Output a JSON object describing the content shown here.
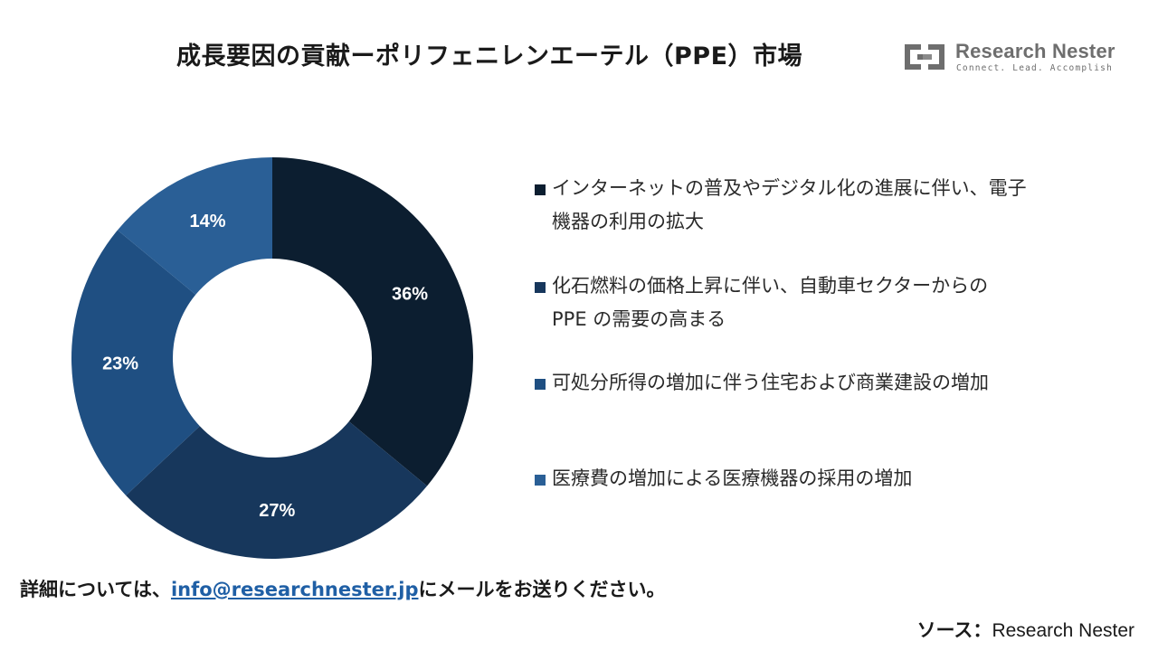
{
  "header": {
    "title": "成長要因の貢献ーポリフェニレンエーテル（PPE）市場"
  },
  "logo": {
    "name": "Research Nester",
    "tagline": "Connect. Lead. Accomplish"
  },
  "chart_data": {
    "type": "pie",
    "donut": true,
    "title": "",
    "categories": [
      "インターネットの普及やデジタル化の進展に伴い、電子機器の利用の拡大",
      "化石燃料の価格上昇に伴い、自動車セクターからのPPEの需要の高まる",
      "可処分所得の増加に伴う住宅および商業建設の増加",
      "医療費の増加による医療機器の採用の増加"
    ],
    "values": [
      36,
      27,
      23,
      14
    ],
    "value_labels": [
      "36%",
      "27%",
      "23%",
      "14%"
    ],
    "colors": [
      "#0c1e30",
      "#17375c",
      "#1f4f82",
      "#2a5f96"
    ],
    "legend_position": "right"
  },
  "legend": {
    "items": [
      {
        "line1": "インターネットの普及やデジタル化の進展に伴い、電子",
        "line2": "機器の利用の拡大"
      },
      {
        "line1": "化石燃料の価格上昇に伴い、自動車セクターからの",
        "line2": "PPE の需要の高まる"
      },
      {
        "line1": "可処分所得の増加に伴う住宅および商業建設の増加",
        "line2": ""
      },
      {
        "line1": "医療費の増加による医療機器の採用の増加",
        "line2": ""
      }
    ]
  },
  "footer": {
    "note_prefix": "詳細については、",
    "email": "info@researchnester.jp",
    "note_suffix": "にメールをお送りください。",
    "source_label": "ソース：",
    "source_value": "Research Nester"
  }
}
